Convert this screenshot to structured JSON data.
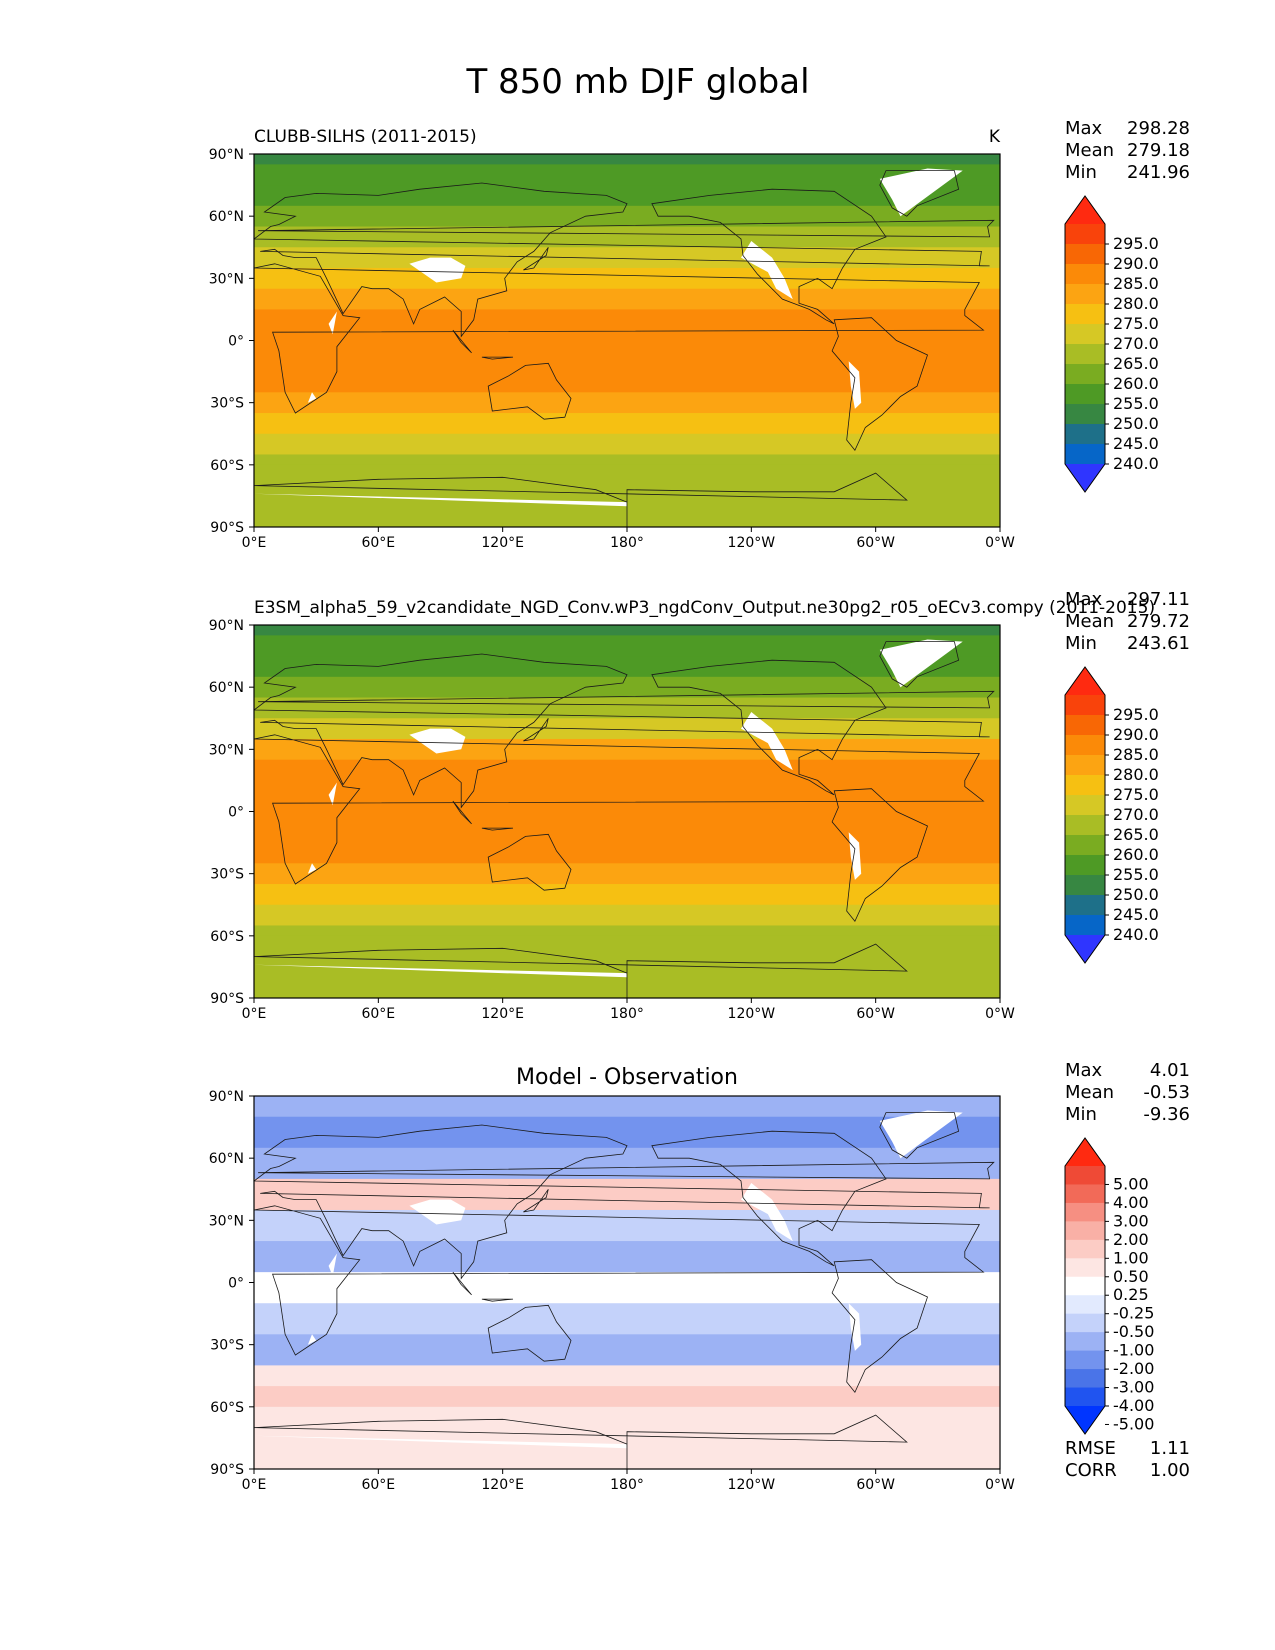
{
  "figure": {
    "title": "T 850 mb DJF global"
  },
  "chart_data": [
    {
      "type": "heatmap",
      "name": "test",
      "left_title": "CLUBB-SILHS (2011-2015)",
      "right_title": "K",
      "center_title": "",
      "xticks": [
        "0°E",
        "60°E",
        "120°E",
        "180°",
        "120°W",
        "60°W",
        "0°W"
      ],
      "yticks": [
        "90°N",
        "60°N",
        "30°N",
        "0°",
        "30°S",
        "60°S",
        "90°S"
      ],
      "xlim": [
        0,
        360
      ],
      "ylim": [
        -90,
        90
      ],
      "stats": [
        {
          "label": "Max",
          "value": "298.28"
        },
        {
          "label": "Mean",
          "value": "279.18"
        },
        {
          "label": "Min",
          "value": "241.96"
        }
      ],
      "colorbar": {
        "labels": [
          "295.0",
          "290.0",
          "285.0",
          "280.0",
          "275.0",
          "270.0",
          "265.0",
          "260.0",
          "255.0",
          "250.0",
          "245.0",
          "240.0"
        ],
        "colors": [
          "#2f35ff",
          "#0666c8",
          "#1e7089",
          "#378742",
          "#4e9a25",
          "#7aac21",
          "#a9bd25",
          "#d6c825",
          "#f6c012",
          "#fca412",
          "#fb8a08",
          "#f86705",
          "#f9430b",
          "#ff2a10"
        ]
      },
      "bands": [
        {
          "lat": 90,
          "value": 252
        },
        {
          "lat": 80,
          "value": 255
        },
        {
          "lat": 70,
          "value": 258
        },
        {
          "lat": 60,
          "value": 262
        },
        {
          "lat": 50,
          "value": 267
        },
        {
          "lat": 40,
          "value": 272
        },
        {
          "lat": 30,
          "value": 279
        },
        {
          "lat": 20,
          "value": 284
        },
        {
          "lat": 10,
          "value": 287
        },
        {
          "lat": 0,
          "value": 288
        },
        {
          "lat": -10,
          "value": 288
        },
        {
          "lat": -20,
          "value": 287
        },
        {
          "lat": -30,
          "value": 283
        },
        {
          "lat": -40,
          "value": 277
        },
        {
          "lat": -50,
          "value": 271
        },
        {
          "lat": -60,
          "value": 267
        },
        {
          "lat": -65,
          "value": 265
        }
      ]
    },
    {
      "type": "heatmap",
      "name": "reference",
      "left_title": "E3SM_alpha5_59_v2candidate_NGD_Conv.wP3_ngdConv_Output.ne30pg2_r05_oECv3.compy (2011-2015)",
      "right_title": "",
      "center_title": "",
      "xticks": [
        "0°E",
        "60°E",
        "120°E",
        "180°",
        "120°W",
        "60°W",
        "0°W"
      ],
      "yticks": [
        "90°N",
        "60°N",
        "30°N",
        "0°",
        "30°S",
        "60°S",
        "90°S"
      ],
      "xlim": [
        0,
        360
      ],
      "ylim": [
        -90,
        90
      ],
      "stats": [
        {
          "label": "Max",
          "value": "297.11"
        },
        {
          "label": "Mean",
          "value": "279.72"
        },
        {
          "label": "Min",
          "value": "243.61"
        }
      ],
      "colorbar": {
        "labels": [
          "295.0",
          "290.0",
          "285.0",
          "280.0",
          "275.0",
          "270.0",
          "265.0",
          "260.0",
          "255.0",
          "250.0",
          "245.0",
          "240.0"
        ],
        "colors": [
          "#2f35ff",
          "#0666c8",
          "#1e7089",
          "#378742",
          "#4e9a25",
          "#7aac21",
          "#a9bd25",
          "#d6c825",
          "#f6c012",
          "#fca412",
          "#fb8a08",
          "#f86705",
          "#f9430b",
          "#ff2a10"
        ]
      },
      "bands": [
        {
          "lat": 90,
          "value": 253
        },
        {
          "lat": 80,
          "value": 256
        },
        {
          "lat": 70,
          "value": 259
        },
        {
          "lat": 60,
          "value": 263
        },
        {
          "lat": 50,
          "value": 268
        },
        {
          "lat": 40,
          "value": 273
        },
        {
          "lat": 30,
          "value": 280
        },
        {
          "lat": 20,
          "value": 285
        },
        {
          "lat": 10,
          "value": 288
        },
        {
          "lat": 0,
          "value": 289
        },
        {
          "lat": -10,
          "value": 289
        },
        {
          "lat": -20,
          "value": 288
        },
        {
          "lat": -30,
          "value": 284
        },
        {
          "lat": -40,
          "value": 278
        },
        {
          "lat": -50,
          "value": 272
        },
        {
          "lat": -60,
          "value": 268
        },
        {
          "lat": -65,
          "value": 266
        }
      ]
    },
    {
      "type": "heatmap",
      "name": "difference",
      "left_title": "",
      "right_title": "",
      "center_title": "Model - Observation",
      "xticks": [
        "0°E",
        "60°E",
        "120°E",
        "180°",
        "120°W",
        "60°W",
        "0°W"
      ],
      "yticks": [
        "90°N",
        "60°N",
        "30°N",
        "0°",
        "30°S",
        "60°S",
        "90°S"
      ],
      "xlim": [
        0,
        360
      ],
      "ylim": [
        -90,
        90
      ],
      "stats": [
        {
          "label": "Max",
          "value": "4.01"
        },
        {
          "label": "Mean",
          "value": "-0.53"
        },
        {
          "label": "Min",
          "value": "-9.36"
        }
      ],
      "colorbar": {
        "labels": [
          "5.00",
          "4.00",
          "3.00",
          "2.00",
          "1.00",
          "0.50",
          "0.25",
          "-0.25",
          "-0.50",
          "-1.00",
          "-2.00",
          "-3.00",
          "-4.00",
          "-5.00"
        ],
        "colors": [
          "#0035ff",
          "#2054f0",
          "#4a74e8",
          "#7393ee",
          "#9cb2f4",
          "#c4d2fa",
          "#e2eafe",
          "#ffffff",
          "#fde6e3",
          "#fcccc5",
          "#f9b0a6",
          "#f68f82",
          "#f26a58",
          "#ef4a36",
          "#ff2a10"
        ]
      },
      "bands": [
        {
          "lat": 90,
          "value": -1.5
        },
        {
          "lat": 75,
          "value": -2.5
        },
        {
          "lat": 60,
          "value": -1.2
        },
        {
          "lat": 45,
          "value": 0.6
        },
        {
          "lat": 30,
          "value": -0.6
        },
        {
          "lat": 15,
          "value": -1.5
        },
        {
          "lat": 0,
          "value": 0.1
        },
        {
          "lat": -15,
          "value": -0.8
        },
        {
          "lat": -30,
          "value": -1.5
        },
        {
          "lat": -45,
          "value": 0.3
        },
        {
          "lat": -55,
          "value": 0.6
        },
        {
          "lat": -65,
          "value": 0.4
        }
      ],
      "metrics": [
        {
          "label": "RMSE",
          "value": "1.11"
        },
        {
          "label": "CORR",
          "value": "1.00"
        }
      ]
    }
  ]
}
